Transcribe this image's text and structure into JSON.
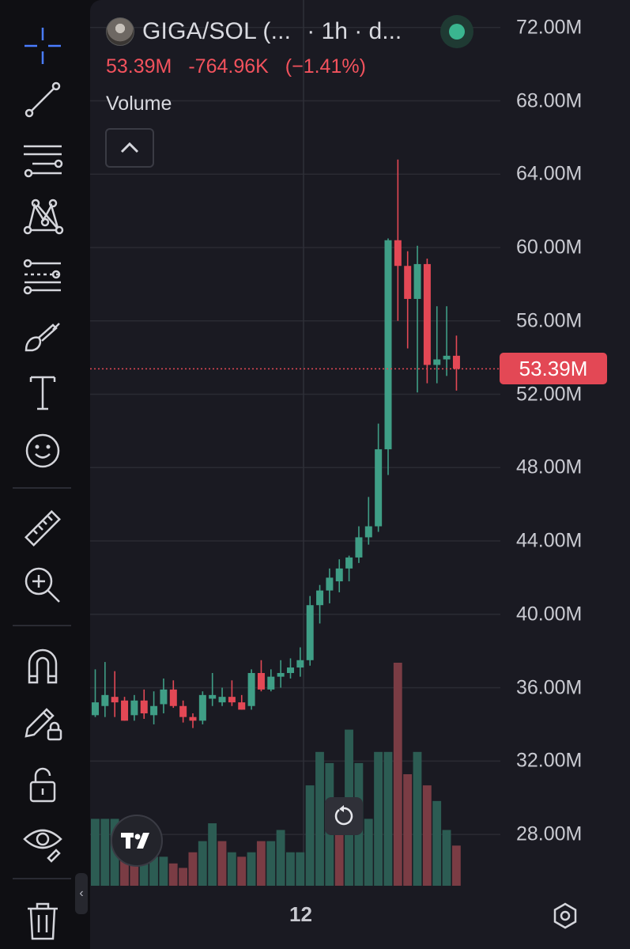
{
  "header": {
    "symbol": "GIGA/SOL (...",
    "interval": "· 1h · d...",
    "ohlc": {
      "close": "53.39M",
      "change": "-764.96K",
      "change_pct": "(−1.41%)"
    },
    "indicator": "Volume"
  },
  "colors": {
    "up": "#3f9e86",
    "down": "#e34855",
    "grid": "#2a2b33",
    "text": "#c9cad1"
  },
  "price_axis": {
    "ticks": [
      "72.00M",
      "68.00M",
      "64.00M",
      "60.00M",
      "56.00M",
      "52.00M",
      "48.00M",
      "44.00M",
      "40.00M",
      "36.00M",
      "32.00M",
      "28.00M"
    ],
    "last_price": "53.39M"
  },
  "time_axis": {
    "label": "12"
  },
  "toolbar": [
    "crosshair-icon",
    "trend-line-icon",
    "fib-retracement-icon",
    "pattern-icon",
    "projection-icon",
    "brush-icon",
    "text-icon",
    "emoji-icon",
    "ruler-icon",
    "zoom-in-icon",
    "magnet-icon",
    "lock-drawing-icon",
    "lock-icon",
    "eye-icon",
    "trash-icon"
  ],
  "chart_data": {
    "type": "candlestick",
    "y_unit": "M",
    "ylim": [
      25.2,
      73.5
    ],
    "last_price": 53.39,
    "candles": [
      {
        "o": 34.5,
        "h": 37.0,
        "l": 34.4,
        "c": 35.2
      },
      {
        "o": 35.0,
        "h": 37.4,
        "l": 34.4,
        "c": 35.6
      },
      {
        "o": 35.5,
        "h": 36.9,
        "l": 34.4,
        "c": 35.2
      },
      {
        "o": 35.3,
        "h": 35.5,
        "l": 34.2,
        "c": 34.2
      },
      {
        "o": 34.5,
        "h": 35.6,
        "l": 34.2,
        "c": 35.3
      },
      {
        "o": 35.3,
        "h": 35.9,
        "l": 34.3,
        "c": 34.6
      },
      {
        "o": 34.5,
        "h": 35.8,
        "l": 34.0,
        "c": 35.0
      },
      {
        "o": 35.1,
        "h": 36.5,
        "l": 34.6,
        "c": 35.9
      },
      {
        "o": 35.9,
        "h": 36.4,
        "l": 34.9,
        "c": 35.0
      },
      {
        "o": 35.0,
        "h": 35.3,
        "l": 34.1,
        "c": 34.4
      },
      {
        "o": 34.4,
        "h": 34.6,
        "l": 33.8,
        "c": 34.2
      },
      {
        "o": 34.2,
        "h": 35.8,
        "l": 34.0,
        "c": 35.6
      },
      {
        "o": 35.4,
        "h": 36.8,
        "l": 35.0,
        "c": 35.6
      },
      {
        "o": 35.2,
        "h": 36.0,
        "l": 35.0,
        "c": 35.5
      },
      {
        "o": 35.5,
        "h": 36.4,
        "l": 35.0,
        "c": 35.2
      },
      {
        "o": 35.2,
        "h": 35.6,
        "l": 34.8,
        "c": 34.8
      },
      {
        "o": 35.0,
        "h": 37.0,
        "l": 34.8,
        "c": 36.8
      },
      {
        "o": 36.8,
        "h": 37.5,
        "l": 35.8,
        "c": 35.9
      },
      {
        "o": 35.9,
        "h": 37.0,
        "l": 35.8,
        "c": 36.6
      },
      {
        "o": 36.6,
        "h": 37.5,
        "l": 36.0,
        "c": 36.8
      },
      {
        "o": 36.8,
        "h": 37.6,
        "l": 36.5,
        "c": 37.1
      },
      {
        "o": 37.1,
        "h": 38.2,
        "l": 36.6,
        "c": 37.5
      },
      {
        "o": 37.5,
        "h": 41.0,
        "l": 37.2,
        "c": 40.5
      },
      {
        "o": 40.5,
        "h": 41.6,
        "l": 39.5,
        "c": 41.3
      },
      {
        "o": 41.3,
        "h": 42.5,
        "l": 40.6,
        "c": 42.0
      },
      {
        "o": 41.8,
        "h": 43.0,
        "l": 41.2,
        "c": 42.5
      },
      {
        "o": 42.5,
        "h": 43.2,
        "l": 41.8,
        "c": 43.1
      },
      {
        "o": 43.1,
        "h": 44.8,
        "l": 42.8,
        "c": 44.2
      },
      {
        "o": 44.2,
        "h": 46.4,
        "l": 43.8,
        "c": 44.8
      },
      {
        "o": 44.8,
        "h": 50.4,
        "l": 44.5,
        "c": 49.0
      },
      {
        "o": 49.0,
        "h": 60.5,
        "l": 47.6,
        "c": 60.4
      },
      {
        "o": 60.4,
        "h": 64.8,
        "l": 56.0,
        "c": 59.0
      },
      {
        "o": 59.0,
        "h": 59.8,
        "l": 54.5,
        "c": 57.2
      },
      {
        "o": 57.2,
        "h": 60.1,
        "l": 52.1,
        "c": 59.1
      },
      {
        "o": 59.1,
        "h": 59.4,
        "l": 52.6,
        "c": 53.6
      },
      {
        "o": 53.6,
        "h": 56.8,
        "l": 52.6,
        "c": 53.9
      },
      {
        "o": 53.9,
        "h": 56.8,
        "l": 53.0,
        "c": 54.1
      },
      {
        "o": 54.1,
        "h": 55.2,
        "l": 52.2,
        "c": 53.39
      }
    ],
    "volume_relative": [
      0.3,
      0.3,
      0.3,
      0.13,
      0.15,
      0.15,
      0.13,
      0.13,
      0.1,
      0.08,
      0.15,
      0.2,
      0.28,
      0.2,
      0.15,
      0.13,
      0.15,
      0.2,
      0.2,
      0.25,
      0.15,
      0.15,
      0.45,
      0.6,
      0.55,
      0.3,
      0.7,
      0.55,
      0.3,
      0.6,
      0.6,
      1.0,
      0.5,
      0.6,
      0.45,
      0.38,
      0.25,
      0.18
    ],
    "volume_up": [
      true,
      true,
      true,
      false,
      false,
      true,
      true,
      true,
      false,
      false,
      false,
      true,
      true,
      false,
      true,
      false,
      true,
      false,
      true,
      true,
      true,
      true,
      true,
      true,
      true,
      false,
      true,
      true,
      true,
      true,
      true,
      false,
      false,
      true,
      false,
      true,
      true,
      false
    ]
  }
}
